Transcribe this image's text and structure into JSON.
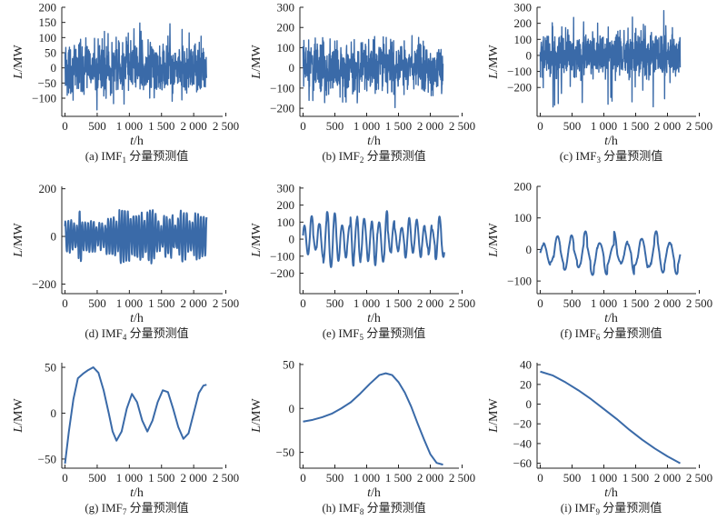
{
  "chart_data": [
    {
      "id": "a",
      "type": "line",
      "style": "noise",
      "caption": {
        "prefix": "(a) IMF",
        "sub": "1",
        "suffix": " 分量预测值"
      },
      "xlabel_italic": "t",
      "xlabel_rest": "/h",
      "ylabel_italic": "L",
      "ylabel_rest": "/MW",
      "xlim": [
        -50,
        2450
      ],
      "ylim": [
        -160,
        200
      ],
      "xticks": [
        0,
        500,
        1000,
        1500,
        2000,
        2500
      ],
      "xtick_labels": [
        "0",
        "500",
        "1 000",
        "1 500",
        "2 000",
        "2 500"
      ],
      "yticks": [
        -100,
        -50,
        0,
        50,
        100,
        150,
        200
      ],
      "ytick_labels": [
        "−100",
        "−50",
        "0",
        "50",
        "100",
        "150",
        "200"
      ],
      "x_range": [
        0,
        2200
      ],
      "y_center": 0,
      "y_spread": 40,
      "y_peak_min": -140,
      "y_peak_max": 155,
      "color": "#3a6aa8"
    },
    {
      "id": "b",
      "type": "line",
      "style": "noise",
      "caption": {
        "prefix": "(b) IMF",
        "sub": "2",
        "suffix": " 分量预测值"
      },
      "xlabel_italic": "t",
      "xlabel_rest": "/h",
      "ylabel_italic": "L",
      "ylabel_rest": "/MW",
      "xlim": [
        -50,
        2450
      ],
      "ylim": [
        -240,
        300
      ],
      "xticks": [
        0,
        500,
        1000,
        1500,
        2000,
        2500
      ],
      "xtick_labels": [
        "0",
        "500",
        "1 000",
        "1 500",
        "2 000",
        "2 500"
      ],
      "yticks": [
        -200,
        -100,
        0,
        100,
        200,
        300
      ],
      "ytick_labels": [
        "−200",
        "−100",
        "0",
        "100",
        "200",
        "300"
      ],
      "x_range": [
        0,
        2200
      ],
      "y_center": 0,
      "y_spread": 60,
      "y_peak_min": -200,
      "y_peak_max": 160,
      "color": "#3a6aa8"
    },
    {
      "id": "c",
      "type": "line",
      "style": "noise",
      "caption": {
        "prefix": "(c) IMF",
        "sub": "3",
        "suffix": " 分量预测值"
      },
      "xlabel_italic": "t",
      "xlabel_rest": "/h",
      "ylabel_italic": "L",
      "ylabel_rest": "/MW",
      "xlim": [
        -50,
        2450
      ],
      "ylim": [
        -380,
        300
      ],
      "xticks": [
        0,
        500,
        1000,
        1500,
        2000,
        2500
      ],
      "xtick_labels": [
        "0",
        "500",
        "1 000",
        "1 500",
        "2 000",
        "2 500"
      ],
      "yticks": [
        -200,
        -100,
        0,
        100,
        200,
        300
      ],
      "ytick_labels": [
        "−200",
        "−100",
        "0",
        "100",
        "200",
        "300"
      ],
      "x_range": [
        0,
        2200
      ],
      "y_center": 0,
      "y_spread": 70,
      "y_peak_min": -340,
      "y_peak_max": 280,
      "color": "#3a6aa8"
    },
    {
      "id": "d",
      "type": "line",
      "style": "wave",
      "caption": {
        "prefix": "(d) IMF",
        "sub": "4",
        "suffix": " 分量预测值"
      },
      "xlabel_italic": "t",
      "xlabel_rest": "/h",
      "ylabel_italic": "L",
      "ylabel_rest": "/MW",
      "xlim": [
        -50,
        2450
      ],
      "ylim": [
        -240,
        210
      ],
      "xticks": [
        0,
        500,
        1000,
        1500,
        2000,
        2500
      ],
      "xtick_labels": [
        "0",
        "500",
        "1 000",
        "1 500",
        "2 000",
        "2 500"
      ],
      "yticks": [
        -200,
        0,
        200
      ],
      "ytick_labels": [
        "−200",
        "0",
        "200"
      ],
      "x_range": [
        0,
        2200
      ],
      "y_center": 0,
      "amplitude": 110,
      "period": 45,
      "color": "#3a6aa8"
    },
    {
      "id": "e",
      "type": "line",
      "style": "wave",
      "caption": {
        "prefix": "(e) IMF",
        "sub": "5",
        "suffix": " 分量预测值"
      },
      "xlabel_italic": "t",
      "xlabel_rest": "/h",
      "ylabel_italic": "L",
      "ylabel_rest": "/MW",
      "xlim": [
        -50,
        2450
      ],
      "ylim": [
        -320,
        310
      ],
      "xticks": [
        0,
        500,
        1000,
        1500,
        2000,
        2500
      ],
      "xtick_labels": [
        "0",
        "500",
        "1 000",
        "1 500",
        "2 000",
        "2 500"
      ],
      "yticks": [
        -200,
        -100,
        0,
        100,
        200,
        300
      ],
      "ytick_labels": [
        "−200",
        "−100",
        "0",
        "100",
        "200",
        "300"
      ],
      "x_range": [
        0,
        2220
      ],
      "y_center": 0,
      "amplitude": 160,
      "period": 120,
      "color": "#3a6aa8"
    },
    {
      "id": "f",
      "type": "line",
      "style": "wave",
      "caption": {
        "prefix": "(f) IMF",
        "sub": "6",
        "suffix": " 分量预测值"
      },
      "xlabel_italic": "t",
      "xlabel_rest": "/h",
      "ylabel_italic": "L",
      "ylabel_rest": "/MW",
      "xlim": [
        -50,
        2450
      ],
      "ylim": [
        -140,
        200
      ],
      "xticks": [
        0,
        500,
        1000,
        1500,
        2000,
        2500
      ],
      "xtick_labels": [
        "0",
        "500",
        "1 000",
        "1 500",
        "2 000",
        "2 500"
      ],
      "yticks": [
        -100,
        0,
        100,
        200
      ],
      "ytick_labels": [
        "−100",
        "0",
        "100",
        "200"
      ],
      "x_range": [
        0,
        2200
      ],
      "y_center": -15,
      "amplitude": 70,
      "period": 225,
      "color": "#3a6aa8"
    },
    {
      "id": "g",
      "type": "line",
      "style": "points",
      "caption": {
        "prefix": "(g) IMF",
        "sub": "7",
        "suffix": " 分量预测值"
      },
      "xlabel_italic": "t",
      "xlabel_rest": "/h",
      "ylabel_italic": "L",
      "ylabel_rest": "/MW",
      "xlim": [
        -50,
        2450
      ],
      "ylim": [
        -60,
        55
      ],
      "xticks": [
        0,
        500,
        1000,
        1500,
        2000,
        2500
      ],
      "xtick_labels": [
        "0",
        "500",
        "1 000",
        "1 500",
        "2 000",
        "2 500"
      ],
      "yticks": [
        -50,
        0,
        50
      ],
      "ytick_labels": [
        "−50",
        "0",
        "50"
      ],
      "x": [
        0,
        60,
        130,
        200,
        280,
        360,
        440,
        520,
        600,
        680,
        740,
        800,
        880,
        960,
        1040,
        1120,
        1200,
        1280,
        1360,
        1440,
        1520,
        1600,
        1680,
        1760,
        1840,
        1920,
        2000,
        2080,
        2150,
        2200
      ],
      "y": [
        -55,
        -20,
        15,
        38,
        43,
        47,
        50,
        44,
        25,
        0,
        -20,
        -30,
        -20,
        5,
        21,
        12,
        -8,
        -20,
        -8,
        12,
        25,
        23,
        5,
        -15,
        -28,
        -22,
        0,
        22,
        30,
        31
      ],
      "color": "#3a6aa8"
    },
    {
      "id": "h",
      "type": "line",
      "style": "points",
      "caption": {
        "prefix": "(h) IMF",
        "sub": "8",
        "suffix": " 分量预测值"
      },
      "xlabel_italic": "t",
      "xlabel_rest": "/h",
      "ylabel_italic": "L",
      "ylabel_rest": "/MW",
      "xlim": [
        -50,
        2450
      ],
      "ylim": [
        -68,
        52
      ],
      "xticks": [
        0,
        500,
        1000,
        1500,
        2000,
        2500
      ],
      "xtick_labels": [
        "0",
        "500",
        "1 000",
        "1 500",
        "2 000",
        "2 500"
      ],
      "yticks": [
        -50,
        0,
        50
      ],
      "ytick_labels": [
        "−50",
        "0",
        "50"
      ],
      "x": [
        0,
        150,
        300,
        450,
        600,
        750,
        900,
        1050,
        1200,
        1300,
        1400,
        1500,
        1600,
        1700,
        1800,
        1900,
        2000,
        2100,
        2200
      ],
      "y": [
        -15,
        -13,
        -10,
        -6,
        0,
        7,
        17,
        28,
        38,
        40,
        38,
        30,
        18,
        2,
        -17,
        -35,
        -52,
        -62,
        -64
      ],
      "color": "#3a6aa8"
    },
    {
      "id": "i",
      "type": "line",
      "style": "points",
      "caption": {
        "prefix": "(i) IMF",
        "sub": "9",
        "suffix": " 分量预测值"
      },
      "xlabel_italic": "t",
      "xlabel_rest": "/h",
      "ylabel_italic": "L",
      "ylabel_rest": "/MW",
      "xlim": [
        -50,
        2450
      ],
      "ylim": [
        -65,
        42
      ],
      "xticks": [
        0,
        500,
        1000,
        1500,
        2000,
        2500
      ],
      "xtick_labels": [
        "0",
        "500",
        "1 000",
        "1 500",
        "2 000",
        "2 500"
      ],
      "yticks": [
        -60,
        -40,
        -20,
        0,
        20,
        40
      ],
      "ytick_labels": [
        "−60",
        "−40",
        "−20",
        "0",
        "20",
        "40"
      ],
      "x": [
        0,
        200,
        400,
        600,
        800,
        1000,
        1200,
        1400,
        1600,
        1800,
        2000,
        2200
      ],
      "y": [
        33,
        29,
        22,
        14,
        5,
        -5,
        -15,
        -26,
        -36,
        -45,
        -53,
        -60
      ],
      "color": "#3a6aa8"
    }
  ]
}
